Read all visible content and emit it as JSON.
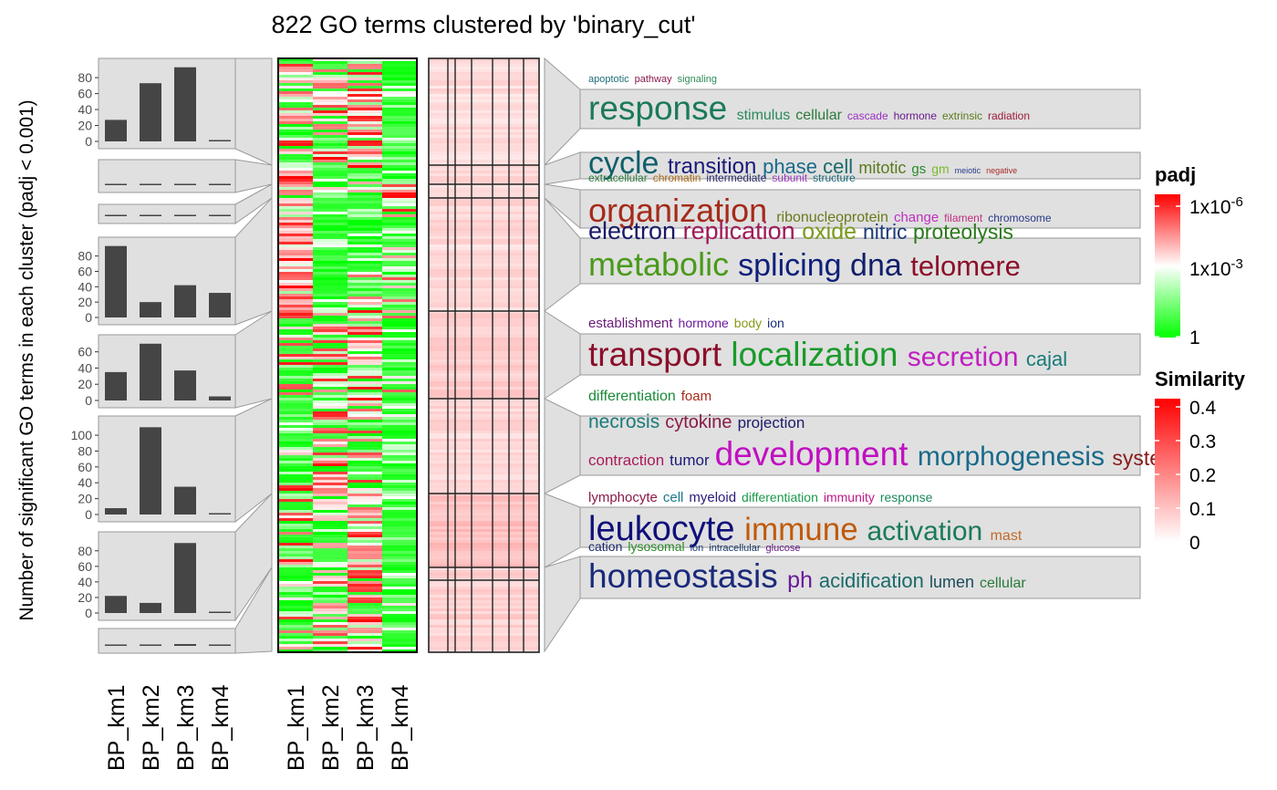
{
  "title": "822 GO terms clustered by 'binary_cut'",
  "ylabel": "Number of significant GO terms in each cluster (padj < 0.001)",
  "chart_data": {
    "type": "heatmap",
    "columns": [
      "BP_km1",
      "BP_km2",
      "BP_km3",
      "BP_km4"
    ],
    "clusters": [
      {
        "counts": [
          27,
          73,
          93,
          1
        ],
        "yticks": [
          "0",
          "20",
          "40",
          "60",
          "80"
        ],
        "ymax": 95,
        "words": [
          {
            "text": "apoptotic",
            "color": "#1f6e7a",
            "size": 11
          },
          {
            "text": "pathway",
            "color": "#8b1a4a",
            "size": 11
          },
          {
            "text": "signaling",
            "color": "#2e8b57",
            "size": 11
          },
          {
            "text": "response",
            "color": "#1b7a5a",
            "size": 37
          },
          {
            "text": "stimulus",
            "color": "#2a8a5a",
            "size": 16
          },
          {
            "text": "cellular",
            "color": "#2a7a3a",
            "size": 16
          },
          {
            "text": "cascade",
            "color": "#9b30c0",
            "size": 12
          },
          {
            "text": "hormone",
            "color": "#6a1a8a",
            "size": 12
          },
          {
            "text": "extrinsic",
            "color": "#5a7a1a",
            "size": 12
          },
          {
            "text": "radiation",
            "color": "#9b1a3a",
            "size": 12
          }
        ]
      },
      {
        "counts": [
          4,
          0,
          0,
          0
        ],
        "yticks": [],
        "ymax": 95,
        "words": [
          {
            "text": "cycle",
            "color": "#0f5f6a",
            "size": 34
          },
          {
            "text": "transition",
            "color": "#1a1a7a",
            "size": 24
          },
          {
            "text": "phase",
            "color": "#1a6a8a",
            "size": 22
          },
          {
            "text": "cell",
            "color": "#1a6a6a",
            "size": 22
          },
          {
            "text": "mitotic",
            "color": "#5a7a1a",
            "size": 18
          },
          {
            "text": "gs",
            "color": "#2a8a2a",
            "size": 15
          },
          {
            "text": "gm",
            "color": "#7aba2a",
            "size": 14
          },
          {
            "text": "meiotic",
            "color": "#2a3a8a",
            "size": 9
          },
          {
            "text": "negative",
            "color": "#aa2a2a",
            "size": 9
          },
          {
            "text": "extracellular",
            "color": "#2a7a3a",
            "size": 12
          },
          {
            "text": "chromatin",
            "color": "#aa6a1a",
            "size": 12
          },
          {
            "text": "intermediate",
            "color": "#2a2a6a",
            "size": 12
          },
          {
            "text": "subunit",
            "color": "#9a3ac0",
            "size": 12
          },
          {
            "text": "structure",
            "color": "#1a6a7a",
            "size": 12
          }
        ]
      },
      {
        "counts": [
          2,
          1,
          0,
          0
        ],
        "yticks": [],
        "ymax": 95,
        "words": [
          {
            "text": "organization",
            "color": "#a52a1a",
            "size": 36
          },
          {
            "text": "ribonucleoprotein",
            "color": "#6a7a1a",
            "size": 16
          },
          {
            "text": "change",
            "color": "#c030c0",
            "size": 15
          },
          {
            "text": "filament",
            "color": "#c03080",
            "size": 12
          },
          {
            "text": "chromosome",
            "color": "#2a3a8a",
            "size": 12
          }
        ]
      },
      {
        "counts": [
          93,
          20,
          42,
          32
        ],
        "yticks": [
          "0",
          "20",
          "40",
          "60",
          "80"
        ],
        "ymax": 95,
        "words": [
          {
            "text": "electron",
            "color": "#1a1a6a",
            "size": 27
          },
          {
            "text": "replication",
            "color": "#a01a5a",
            "size": 27
          },
          {
            "text": "oxide",
            "color": "#7a9a1a",
            "size": 25
          },
          {
            "text": "nitric",
            "color": "#1a3a7a",
            "size": 23
          },
          {
            "text": "proteolysis",
            "color": "#2a7a1a",
            "size": 23
          },
          {
            "text": "metabolic",
            "color": "#4a9a1a",
            "size": 36
          },
          {
            "text": "splicing",
            "color": "#0f1f7a",
            "size": 34
          },
          {
            "text": "dna",
            "color": "#0f1f6a",
            "size": 34
          },
          {
            "text": "telomere",
            "color": "#8a0f2a",
            "size": 31
          }
        ]
      },
      {
        "counts": [
          35,
          70,
          37,
          5
        ],
        "yticks": [
          "0",
          "20",
          "40",
          "60"
        ],
        "ymax": 72,
        "words": [
          {
            "text": "establishment",
            "color": "#6a1a7a",
            "size": 15
          },
          {
            "text": "hormone",
            "color": "#6a1a9a",
            "size": 14
          },
          {
            "text": "body",
            "color": "#8a9a1a",
            "size": 14
          },
          {
            "text": "ion",
            "color": "#1a2a7a",
            "size": 14
          },
          {
            "text": "transport",
            "color": "#8a0f2a",
            "size": 37
          },
          {
            "text": "localization",
            "color": "#1a9a2a",
            "size": 37
          },
          {
            "text": "secretion",
            "color": "#c020c0",
            "size": 30
          },
          {
            "text": "cajal",
            "color": "#1a7a7a",
            "size": 22
          }
        ]
      },
      {
        "counts": [
          8,
          110,
          35,
          1
        ],
        "yticks": [
          "0",
          "20",
          "40",
          "60",
          "80",
          "100"
        ],
        "ymax": 115,
        "words": [
          {
            "text": "differentiation",
            "color": "#1a8a3a",
            "size": 16
          },
          {
            "text": "foam",
            "color": "#aa2a1a",
            "size": 15
          },
          {
            "text": "necrosis",
            "color": "#1a7a7a",
            "size": 21
          },
          {
            "text": "cytokine",
            "color": "#8a1a4a",
            "size": 20
          },
          {
            "text": "projection",
            "color": "#1a1a6a",
            "size": 17
          },
          {
            "text": "contraction",
            "color": "#aa1a5a",
            "size": 17
          },
          {
            "text": "tumor",
            "color": "#1a1a7a",
            "size": 17
          },
          {
            "text": "development",
            "color": "#c010c0",
            "size": 37
          },
          {
            "text": "morphogenesis",
            "color": "#1a6a8a",
            "size": 30
          },
          {
            "text": "system",
            "color": "#8a1a1a",
            "size": 23
          }
        ]
      },
      {
        "counts": [
          22,
          13,
          90,
          0
        ],
        "yticks": [
          "0",
          "20",
          "40",
          "60",
          "80"
        ],
        "ymax": 95,
        "words": [
          {
            "text": "lymphocyte",
            "color": "#8a1a4a",
            "size": 15
          },
          {
            "text": "cell",
            "color": "#1a7a8a",
            "size": 15
          },
          {
            "text": "myeloid",
            "color": "#2a1a7a",
            "size": 15
          },
          {
            "text": "differentiation",
            "color": "#1a9a4a",
            "size": 14
          },
          {
            "text": "immunity",
            "color": "#c01a8a",
            "size": 14
          },
          {
            "text": "response",
            "color": "#1a8a5a",
            "size": 14
          },
          {
            "text": "leukocyte",
            "color": "#0f0f7a",
            "size": 38
          },
          {
            "text": "immune",
            "color": "#c05a0a",
            "size": 35
          },
          {
            "text": "activation",
            "color": "#1a7a5a",
            "size": 30
          },
          {
            "text": "mast",
            "color": "#c06a2a",
            "size": 16
          },
          {
            "text": "cation",
            "color": "#1a2a6a",
            "size": 14
          },
          {
            "text": "lysosomal",
            "color": "#2a8a2a",
            "size": 14
          },
          {
            "text": "ion",
            "color": "#1a3a7a",
            "size": 11
          },
          {
            "text": "intracellular",
            "color": "#1a3a6a",
            "size": 11
          },
          {
            "text": "glucose",
            "color": "#6a1a8a",
            "size": 11
          }
        ]
      },
      {
        "counts": [
          3,
          10,
          17,
          2
        ],
        "yticks": [],
        "ymax": 95,
        "words": [
          {
            "text": "homeostasis",
            "color": "#1a2a7a",
            "size": 37
          },
          {
            "text": "ph",
            "color": "#6a1a9a",
            "size": 25
          },
          {
            "text": "acidification",
            "color": "#1a6a6a",
            "size": 22
          },
          {
            "text": "lumen",
            "color": "#1a4a5a",
            "size": 18
          },
          {
            "text": "cellular",
            "color": "#2a7a3a",
            "size": 16
          }
        ]
      }
    ],
    "legend_padj": {
      "title": "padj",
      "ticks": [
        {
          "base": "1x10",
          "exp": "-6"
        },
        {
          "base": "1x10",
          "exp": "-3"
        },
        {
          "base": "1",
          "exp": ""
        }
      ],
      "colors": [
        "#ff0000",
        "#ffffff",
        "#00ff00"
      ]
    },
    "legend_similarity": {
      "title": "Similarity",
      "ticks": [
        "0.4",
        "0.3",
        "0.2",
        "0.1",
        "0"
      ],
      "colors": [
        "#ffffff",
        "#ff0000"
      ]
    },
    "bar_color": "#454545",
    "panel_fill": "#e0e0e0",
    "panel_stroke": "#9a9a9a"
  }
}
